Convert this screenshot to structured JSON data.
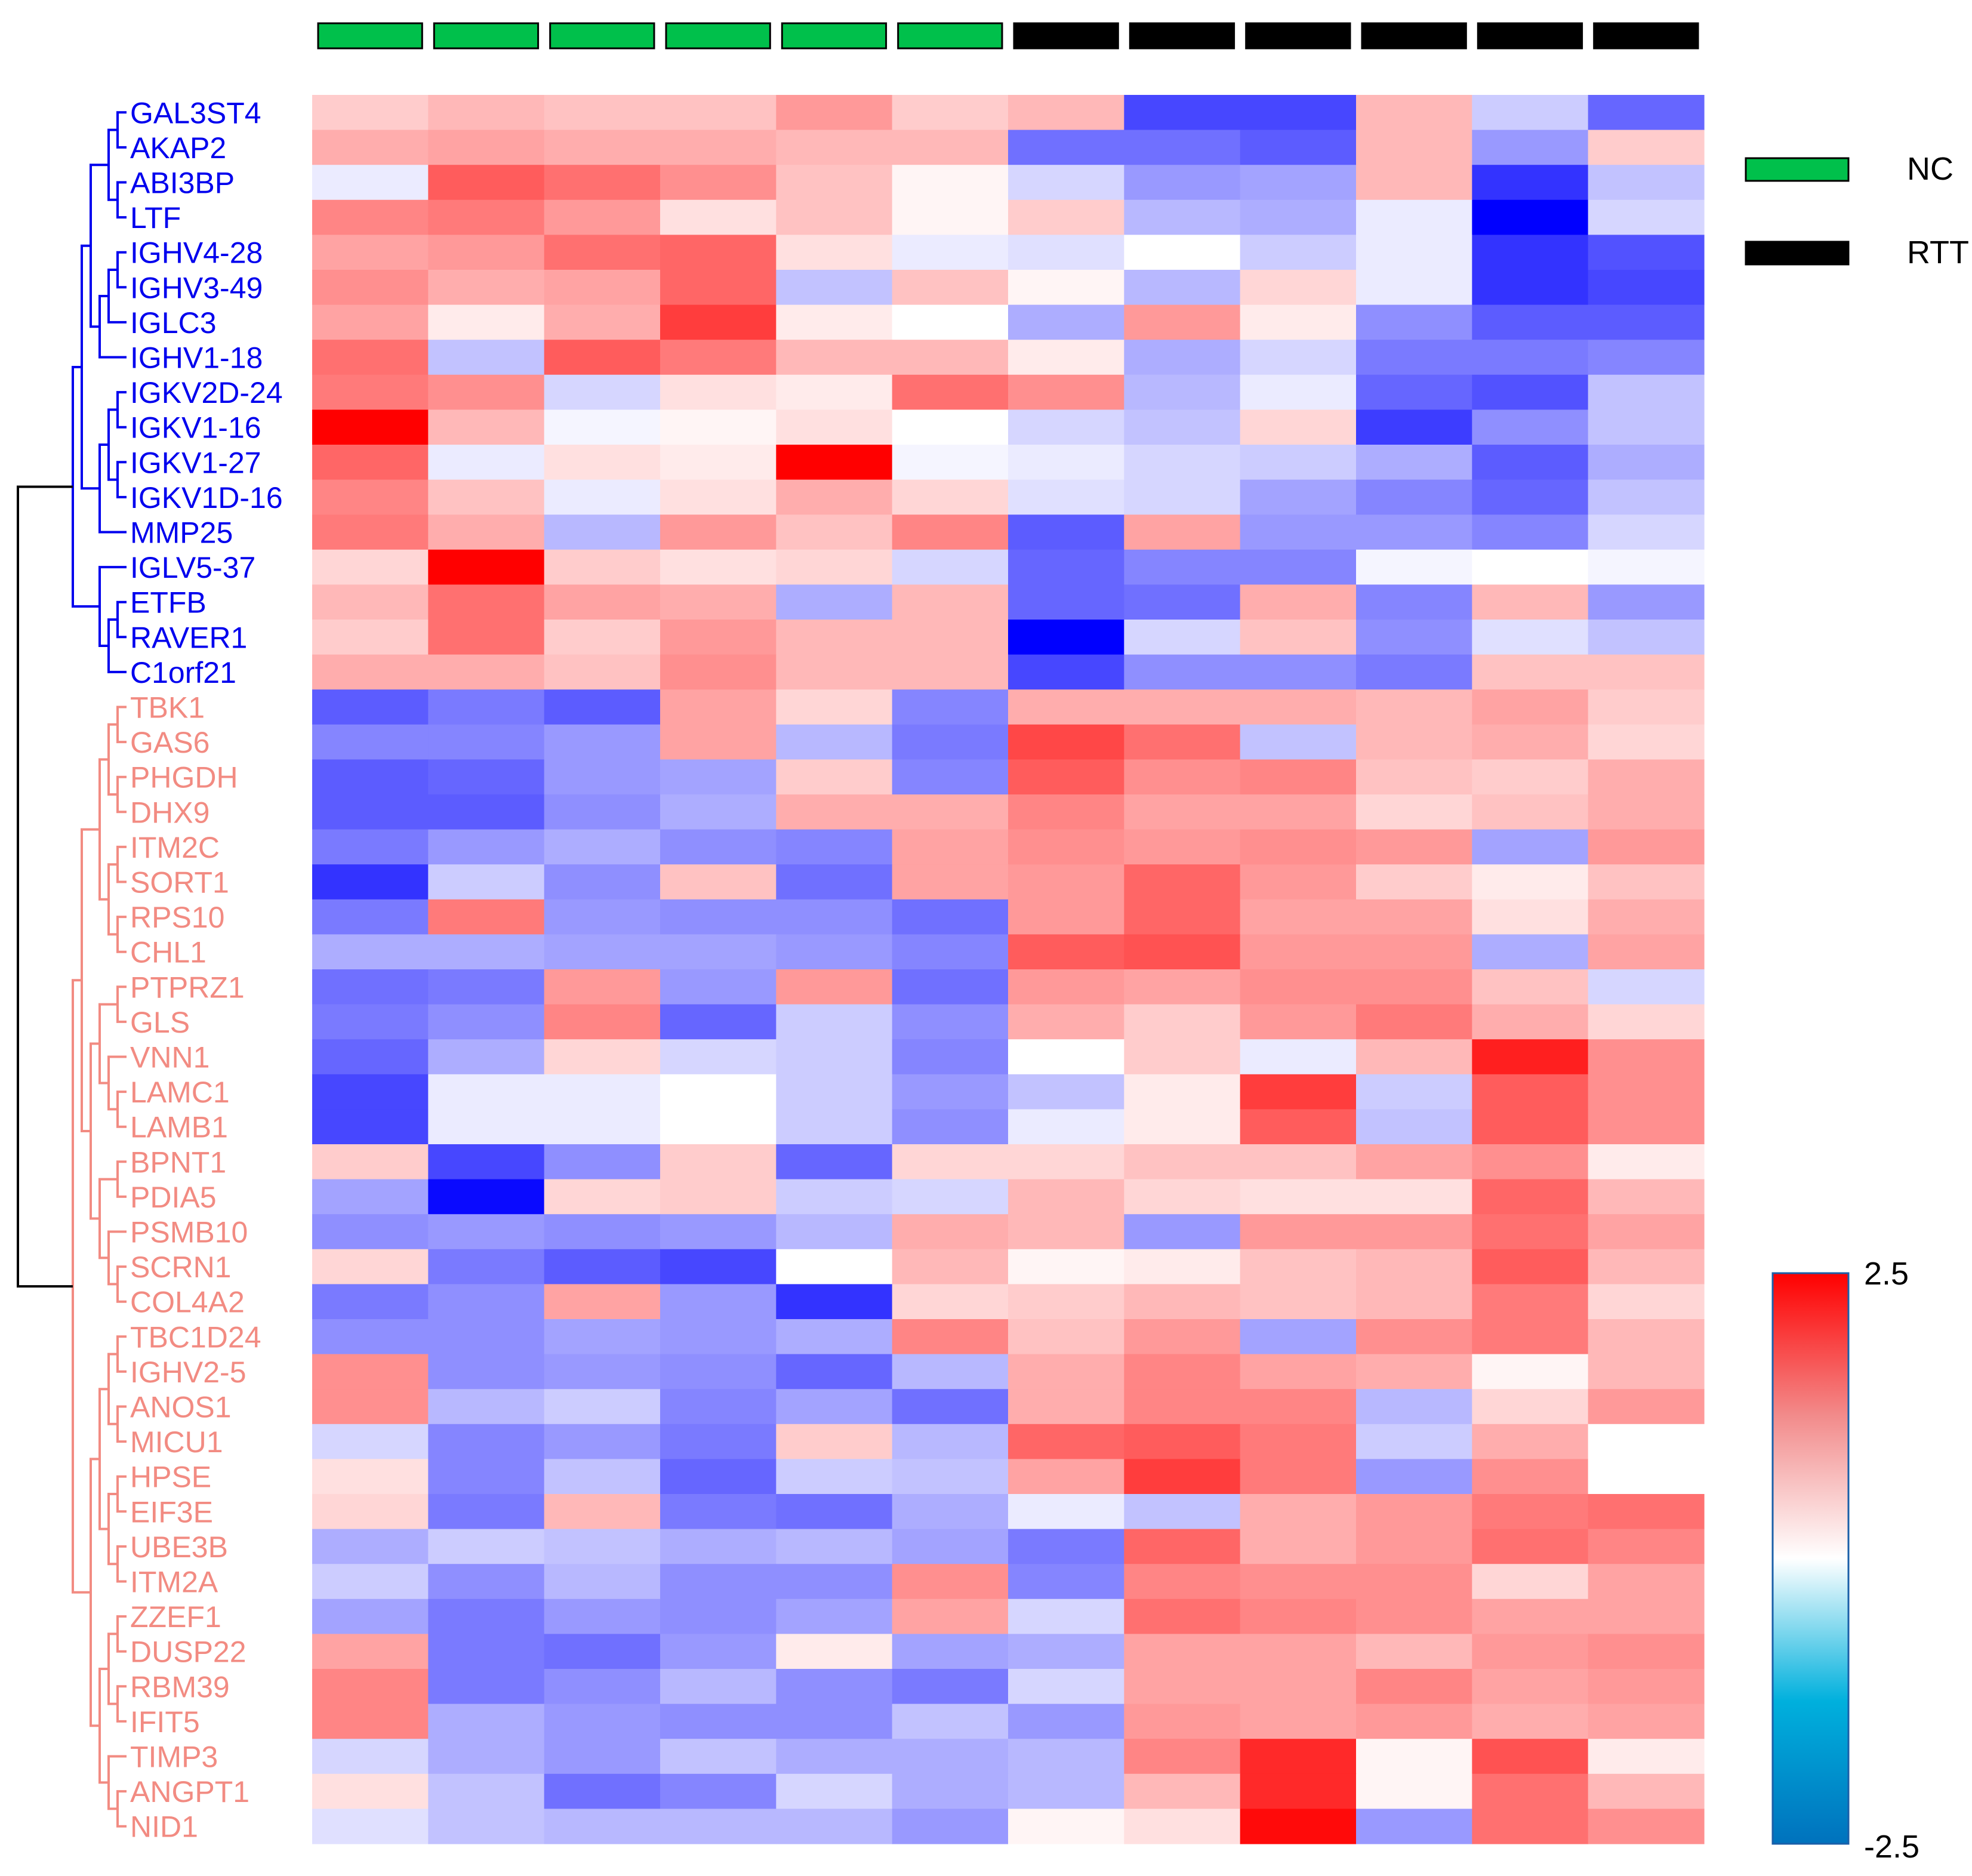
{
  "chart_data": {
    "type": "heatmap",
    "title": "",
    "xlabel": "",
    "ylabel": "",
    "groups": [
      {
        "name": "NC",
        "color": "#00c04b"
      },
      {
        "name": "RTT",
        "color": "#000000"
      }
    ],
    "sample_groups": [
      "NC",
      "NC",
      "NC",
      "NC",
      "NC",
      "NC",
      "RTT",
      "RTT",
      "RTT",
      "RTT",
      "RTT",
      "RTT"
    ],
    "cluster_colors": {
      "1": "#0000ee",
      "2": "#f28b82"
    },
    "rows": [
      {
        "gene": "GAL3ST4",
        "cluster": 1,
        "values": [
          0.5,
          0.7,
          0.6,
          0.6,
          1.0,
          0.5,
          0.7,
          -1.8,
          -1.8,
          0.7,
          -0.5,
          -1.5
        ]
      },
      {
        "gene": "AKAP2",
        "cluster": 1,
        "values": [
          0.8,
          0.9,
          0.8,
          0.8,
          0.7,
          0.7,
          -1.4,
          -1.4,
          -1.6,
          0.7,
          -1.0,
          0.5
        ]
      },
      {
        "gene": "ABI3BP",
        "cluster": 1,
        "values": [
          -0.2,
          1.6,
          1.4,
          1.1,
          0.6,
          0.1,
          -0.4,
          -1.0,
          -0.9,
          0.7,
          -2.0,
          -0.6
        ]
      },
      {
        "gene": "LTF",
        "cluster": 1,
        "values": [
          1.2,
          1.3,
          1.0,
          0.3,
          0.6,
          0.1,
          0.5,
          -0.7,
          -0.8,
          -0.2,
          -2.5,
          -0.4
        ]
      },
      {
        "gene": "IGHV4-28",
        "cluster": 1,
        "values": [
          0.9,
          1.0,
          1.4,
          1.5,
          0.3,
          -0.2,
          -0.3,
          0.0,
          -0.5,
          -0.2,
          -2.0,
          -1.7
        ]
      },
      {
        "gene": "IGHV3-49",
        "cluster": 1,
        "values": [
          1.1,
          0.8,
          0.9,
          1.5,
          -0.6,
          0.6,
          0.1,
          -0.7,
          0.4,
          -0.2,
          -2.0,
          -1.8
        ]
      },
      {
        "gene": "IGLC3",
        "cluster": 1,
        "values": [
          0.9,
          0.2,
          0.8,
          1.9,
          0.2,
          0.0,
          -0.8,
          1.0,
          0.2,
          -1.1,
          -1.6,
          -1.6
        ]
      },
      {
        "gene": "IGHV1-18",
        "cluster": 1,
        "values": [
          1.4,
          -0.6,
          1.6,
          1.3,
          0.7,
          0.7,
          0.2,
          -0.8,
          -0.4,
          -1.3,
          -1.3,
          -1.2
        ]
      },
      {
        "gene": "IGKV2D-24",
        "cluster": 1,
        "values": [
          1.3,
          1.1,
          -0.4,
          0.3,
          0.2,
          1.4,
          1.1,
          -0.7,
          -0.2,
          -1.5,
          -1.7,
          -0.6
        ]
      },
      {
        "gene": "IGKV1-16",
        "cluster": 1,
        "values": [
          2.5,
          0.7,
          -0.1,
          0.1,
          0.3,
          0.0,
          -0.4,
          -0.6,
          0.4,
          -1.9,
          -1.1,
          -0.6
        ]
      },
      {
        "gene": "IGKV1-27",
        "cluster": 1,
        "values": [
          1.5,
          -0.2,
          0.3,
          0.2,
          2.5,
          -0.1,
          -0.2,
          -0.4,
          -0.5,
          -0.8,
          -1.6,
          -0.8
        ]
      },
      {
        "gene": "IGKV1D-16",
        "cluster": 1,
        "values": [
          1.2,
          0.6,
          -0.2,
          0.3,
          0.8,
          0.4,
          -0.3,
          -0.4,
          -0.9,
          -1.2,
          -1.5,
          -0.6
        ]
      },
      {
        "gene": "MMP25",
        "cluster": 1,
        "values": [
          1.3,
          0.8,
          -0.7,
          1.0,
          0.6,
          1.2,
          -1.6,
          0.9,
          -1.0,
          -1.0,
          -1.2,
          -0.4
        ]
      },
      {
        "gene": "IGLV5-37",
        "cluster": 1,
        "values": [
          0.4,
          2.5,
          0.5,
          0.3,
          0.4,
          -0.4,
          -1.5,
          -1.2,
          -1.2,
          -0.1,
          0.0,
          -0.1
        ]
      },
      {
        "gene": "ETFB",
        "cluster": 1,
        "values": [
          0.7,
          1.4,
          0.9,
          0.8,
          -0.8,
          0.7,
          -1.5,
          -1.4,
          0.8,
          -1.2,
          0.7,
          -1.0
        ]
      },
      {
        "gene": "RAVER1",
        "cluster": 1,
        "values": [
          0.5,
          1.4,
          0.5,
          1.0,
          0.7,
          0.7,
          -2.5,
          -0.4,
          0.6,
          -1.1,
          -0.3,
          -0.6
        ]
      },
      {
        "gene": "C1orf21",
        "cluster": 1,
        "values": [
          0.8,
          0.8,
          0.6,
          1.1,
          0.7,
          0.7,
          -1.8,
          -1.1,
          -1.1,
          -1.3,
          0.6,
          0.6
        ]
      },
      {
        "gene": "TBK1",
        "cluster": 2,
        "values": [
          -1.6,
          -1.3,
          -1.6,
          0.9,
          0.4,
          -1.2,
          0.8,
          0.8,
          0.8,
          0.7,
          0.9,
          0.5
        ]
      },
      {
        "gene": "GAS6",
        "cluster": 2,
        "values": [
          -1.2,
          -1.2,
          -1.0,
          0.9,
          -0.7,
          -1.3,
          1.8,
          1.4,
          -0.6,
          0.7,
          0.8,
          0.4
        ]
      },
      {
        "gene": "PHGDH",
        "cluster": 2,
        "values": [
          -1.6,
          -1.5,
          -1.0,
          -0.9,
          0.5,
          -1.2,
          1.6,
          1.1,
          1.2,
          0.6,
          0.5,
          0.8
        ]
      },
      {
        "gene": "DHX9",
        "cluster": 2,
        "values": [
          -1.6,
          -1.6,
          -1.1,
          -0.8,
          0.8,
          0.8,
          1.2,
          0.9,
          0.9,
          0.4,
          0.6,
          0.8
        ]
      },
      {
        "gene": "ITM2C",
        "cluster": 2,
        "values": [
          -1.3,
          -1.0,
          -0.8,
          -1.1,
          -1.2,
          0.9,
          1.1,
          1.0,
          1.1,
          1.0,
          -0.9,
          1.0
        ]
      },
      {
        "gene": "SORT1",
        "cluster": 2,
        "values": [
          -2.0,
          -0.5,
          -1.1,
          0.6,
          -1.4,
          0.9,
          1.0,
          1.5,
          1.0,
          0.5,
          0.2,
          0.6
        ]
      },
      {
        "gene": "RPS10",
        "cluster": 2,
        "values": [
          -1.3,
          1.3,
          -1.0,
          -1.1,
          -1.1,
          -1.4,
          1.0,
          1.5,
          0.9,
          0.9,
          0.3,
          0.8
        ]
      },
      {
        "gene": "CHL1",
        "cluster": 2,
        "values": [
          -0.8,
          -0.8,
          -0.9,
          -0.9,
          -1.0,
          -1.2,
          1.6,
          1.7,
          1.0,
          1.0,
          -0.8,
          0.9
        ]
      },
      {
        "gene": "PTPRZ1",
        "cluster": 2,
        "values": [
          -1.4,
          -1.3,
          1.0,
          -1.0,
          1.0,
          -1.4,
          1.0,
          0.9,
          1.1,
          1.1,
          0.6,
          -0.4
        ]
      },
      {
        "gene": "GLS",
        "cluster": 2,
        "values": [
          -1.3,
          -1.1,
          1.2,
          -1.5,
          -0.5,
          -1.1,
          0.8,
          0.5,
          1.0,
          1.3,
          0.8,
          0.4
        ]
      },
      {
        "gene": "VNN1",
        "cluster": 2,
        "values": [
          -1.5,
          -0.8,
          0.4,
          -0.4,
          -0.5,
          -1.2,
          0.0,
          0.5,
          -0.2,
          0.7,
          2.2,
          1.1
        ]
      },
      {
        "gene": "LAMC1",
        "cluster": 2,
        "values": [
          -1.8,
          -0.2,
          -0.2,
          0.0,
          -0.5,
          -1.0,
          -0.6,
          0.2,
          1.9,
          -0.5,
          1.6,
          1.1
        ]
      },
      {
        "gene": "LAMB1",
        "cluster": 2,
        "values": [
          -1.8,
          -0.2,
          -0.2,
          0.0,
          -0.5,
          -1.1,
          -0.2,
          0.2,
          1.6,
          -0.6,
          1.6,
          1.1
        ]
      },
      {
        "gene": "BPNT1",
        "cluster": 2,
        "values": [
          0.5,
          -1.8,
          -1.1,
          0.5,
          -1.5,
          0.4,
          0.4,
          0.6,
          0.6,
          0.9,
          1.1,
          0.2
        ]
      },
      {
        "gene": "PDIA5",
        "cluster": 2,
        "values": [
          -0.9,
          -2.4,
          0.4,
          0.5,
          -0.5,
          -0.4,
          0.7,
          0.4,
          0.3,
          0.3,
          1.5,
          0.7
        ]
      },
      {
        "gene": "PSMB10",
        "cluster": 2,
        "values": [
          -1.1,
          -1.0,
          -1.1,
          -1.0,
          -0.7,
          0.8,
          0.7,
          -1.0,
          1.0,
          1.0,
          1.4,
          0.9
        ]
      },
      {
        "gene": "SCRN1",
        "cluster": 2,
        "values": [
          0.4,
          -1.3,
          -1.6,
          -1.8,
          0.0,
          0.7,
          0.1,
          0.2,
          0.6,
          0.7,
          1.6,
          0.7
        ]
      },
      {
        "gene": "COL4A2",
        "cluster": 2,
        "values": [
          -1.3,
          -1.1,
          0.9,
          -1.0,
          -2.0,
          0.4,
          0.5,
          0.7,
          0.6,
          0.7,
          1.3,
          0.4
        ]
      },
      {
        "gene": "TBC1D24",
        "cluster": 2,
        "values": [
          -1.1,
          -1.1,
          -0.9,
          -1.0,
          -0.8,
          1.2,
          0.6,
          1.0,
          -0.9,
          1.1,
          1.3,
          0.7
        ]
      },
      {
        "gene": "IGHV2-5",
        "cluster": 2,
        "values": [
          1.1,
          -1.1,
          -1.0,
          -1.1,
          -1.5,
          -0.7,
          0.8,
          1.2,
          0.9,
          0.8,
          0.1,
          0.7
        ]
      },
      {
        "gene": "ANOS1",
        "cluster": 2,
        "values": [
          1.1,
          -0.7,
          -0.5,
          -1.2,
          -0.9,
          -1.4,
          0.8,
          1.2,
          1.2,
          -0.7,
          0.4,
          1.0
        ]
      },
      {
        "gene": "MICU1",
        "cluster": 2,
        "values": [
          -0.4,
          -1.2,
          -1.0,
          -1.3,
          0.5,
          -0.7,
          1.5,
          1.6,
          1.3,
          -0.5,
          0.8,
          0.0
        ]
      },
      {
        "gene": "HPSE",
        "cluster": 2,
        "values": [
          0.3,
          -1.2,
          -0.6,
          -1.5,
          -0.5,
          -0.6,
          0.9,
          1.9,
          1.3,
          -1.0,
          1.1,
          0.0
        ]
      },
      {
        "gene": "EIF3E",
        "cluster": 2,
        "values": [
          0.4,
          -1.3,
          0.7,
          -1.3,
          -1.4,
          -0.8,
          -0.2,
          -0.6,
          0.8,
          1.0,
          1.3,
          1.4
        ]
      },
      {
        "gene": "UBE3B",
        "cluster": 2,
        "values": [
          -0.8,
          -0.5,
          -0.6,
          -0.8,
          -0.7,
          -0.9,
          -1.3,
          1.5,
          0.8,
          1.0,
          1.4,
          1.2
        ]
      },
      {
        "gene": "ITM2A",
        "cluster": 2,
        "values": [
          -0.5,
          -1.1,
          -0.7,
          -1.1,
          -1.1,
          1.1,
          -1.2,
          1.2,
          1.1,
          1.1,
          0.4,
          0.9
        ]
      },
      {
        "gene": "ZZEF1",
        "cluster": 2,
        "values": [
          -0.9,
          -1.3,
          -1.0,
          -1.1,
          -0.9,
          0.9,
          -0.4,
          1.4,
          1.2,
          1.1,
          0.9,
          0.9
        ]
      },
      {
        "gene": "DUSP22",
        "cluster": 2,
        "values": [
          0.9,
          -1.3,
          -1.4,
          -1.0,
          0.2,
          -0.9,
          -0.8,
          0.9,
          0.9,
          0.7,
          1.0,
          1.1
        ]
      },
      {
        "gene": "RBM39",
        "cluster": 2,
        "values": [
          1.2,
          -1.3,
          -1.1,
          -0.7,
          -1.1,
          -1.3,
          -0.4,
          0.9,
          0.9,
          1.2,
          0.9,
          1.0
        ]
      },
      {
        "gene": "IFIT5",
        "cluster": 2,
        "values": [
          1.2,
          -0.8,
          -1.0,
          -1.1,
          -1.1,
          -0.6,
          -1.0,
          1.0,
          0.9,
          1.0,
          0.8,
          0.9
        ]
      },
      {
        "gene": "TIMP3",
        "cluster": 2,
        "values": [
          -0.4,
          -0.8,
          -1.0,
          -0.6,
          -0.8,
          -0.8,
          -0.7,
          1.2,
          2.1,
          0.1,
          1.7,
          0.2
        ]
      },
      {
        "gene": "ANGPT1",
        "cluster": 2,
        "values": [
          0.3,
          -0.6,
          -1.4,
          -1.2,
          -0.4,
          -0.8,
          -0.7,
          0.7,
          2.1,
          0.1,
          1.4,
          0.7
        ]
      },
      {
        "gene": "NID1",
        "cluster": 2,
        "values": [
          -0.3,
          -0.6,
          -0.7,
          -0.7,
          -0.7,
          -1.0,
          0.1,
          0.3,
          2.4,
          -1.0,
          1.4,
          1.1
        ]
      }
    ],
    "color_scale": {
      "min": -2.5,
      "max": 2.5,
      "min_label": "-2.5",
      "max_label": "2.5",
      "heatmap_neg_color": "#0000ff",
      "heatmap_mid_color": "#ffffff",
      "heatmap_pos_color": "#ff0000",
      "bar_stops": [
        "#0072bd",
        "#00b0dd",
        "#ffffff",
        "#f28b8b",
        "#ff0000"
      ]
    },
    "dendrogram": {
      "row_order_leaves": true,
      "top_split": [
        1,
        2
      ],
      "root_color": "#000000"
    }
  }
}
